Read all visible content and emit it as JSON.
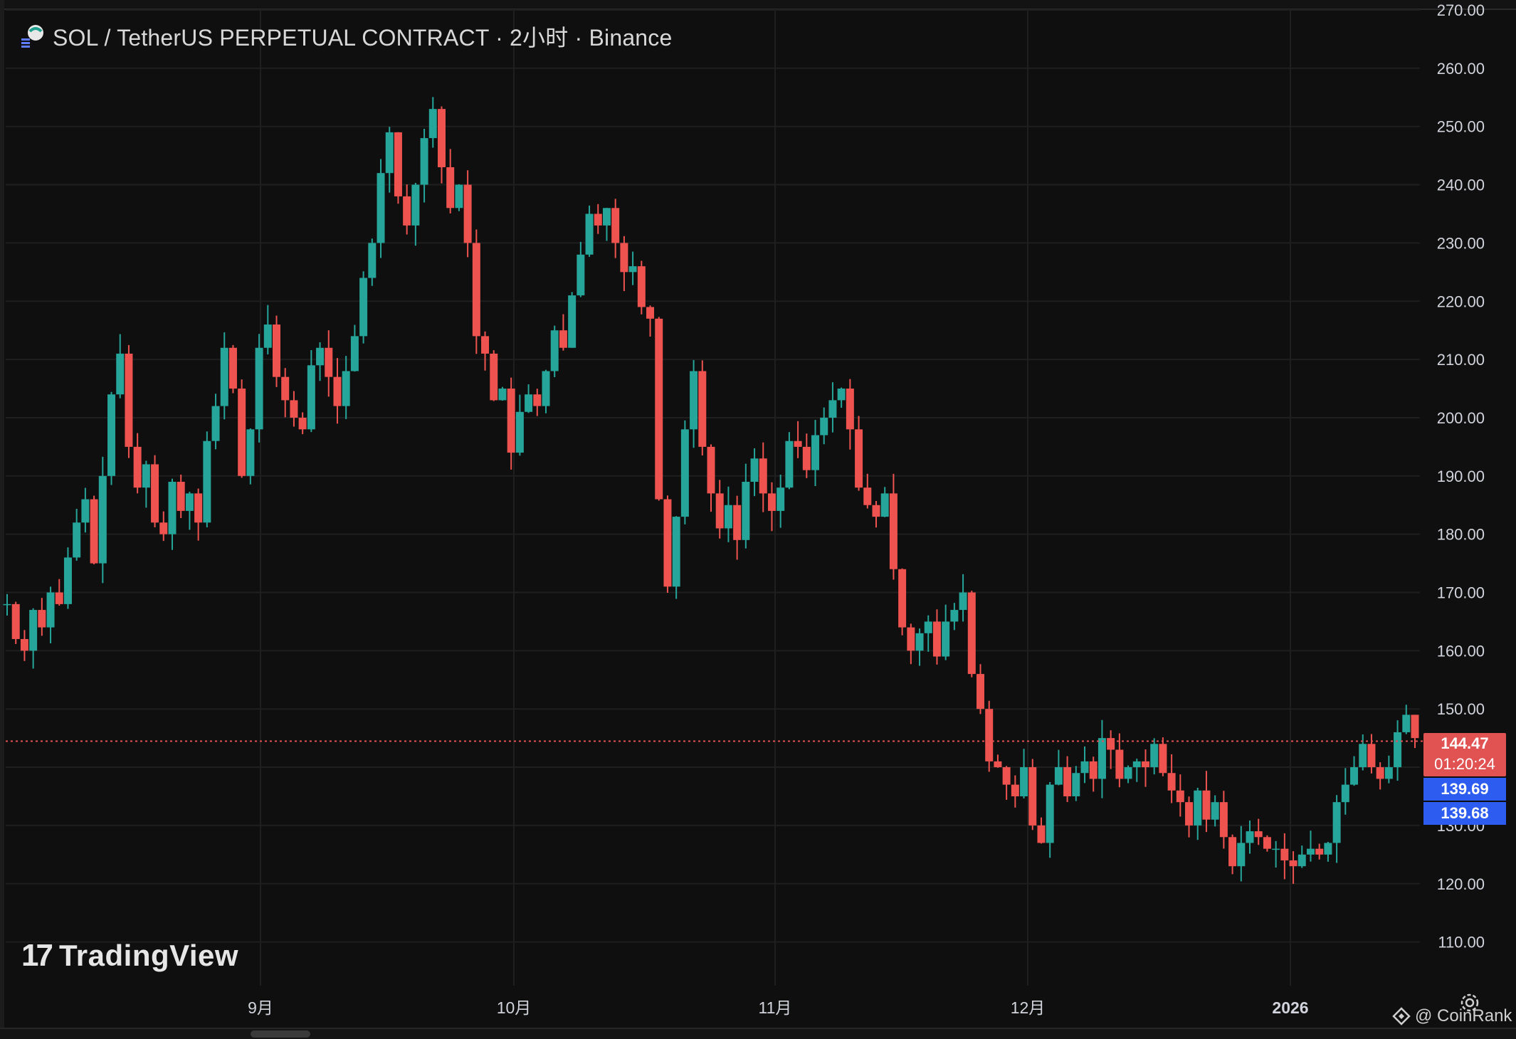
{
  "header": {
    "title": "SOL / TetherUS PERPETUAL CONTRACT · 2小时 · Binance"
  },
  "branding": {
    "logo_mark": "17",
    "logo_text": "TradingView",
    "watermark": "@ CoinRank"
  },
  "price_tags": {
    "last_price": "144.47",
    "countdown": "01:20:24",
    "tag_a": "139.69",
    "tag_b": "139.68"
  },
  "colors": {
    "background": "#0f0f0f",
    "grid": "#1f1f1f",
    "up": "#26a69a",
    "down": "#ef5350",
    "last_price": "#e15252",
    "marker": "#2d5df0"
  },
  "chart_data": {
    "type": "line",
    "style": "candlestick",
    "title": "SOL / TetherUS PERPETUAL CONTRACT · 2小时 · Binance",
    "xlabel": "",
    "ylabel": "",
    "x_ticks": [
      "9月",
      "10月",
      "11月",
      "12月",
      "2026"
    ],
    "y_ticks": [
      "110.00",
      "120.00",
      "130.00",
      "140.00",
      "150.00",
      "160.00",
      "170.00",
      "180.00",
      "190.00",
      "200.00",
      "210.00",
      "220.00",
      "230.00",
      "240.00",
      "250.00",
      "260.00",
      "270.00"
    ],
    "ylim": [
      102.5,
      270
    ],
    "last_price": 144.47,
    "grid": true,
    "series": [
      {
        "values": [
          168,
          162,
          160,
          167,
          164,
          170,
          168,
          176,
          182,
          186,
          175,
          190,
          204,
          211,
          195,
          188,
          192,
          182,
          180,
          189,
          184,
          187,
          182,
          196,
          202,
          212,
          205,
          190,
          198,
          212,
          216,
          207,
          203,
          200,
          198,
          209,
          212,
          207,
          202,
          208,
          214,
          224,
          230,
          242,
          249,
          238,
          233,
          240,
          248,
          253,
          243,
          236,
          240,
          230,
          214,
          211,
          203,
          205,
          194,
          201,
          204,
          202,
          208,
          215,
          212,
          221,
          228,
          235,
          233,
          236,
          230,
          225,
          226,
          219,
          217,
          186,
          171,
          183,
          198,
          208,
          195,
          187,
          181,
          185,
          179,
          189,
          193,
          187,
          184,
          188,
          196,
          195,
          191,
          197,
          200,
          203,
          205,
          198,
          188,
          185,
          183,
          187,
          174,
          164,
          160,
          163,
          165,
          159,
          165,
          167,
          170,
          156,
          150,
          141,
          140,
          137,
          135,
          140,
          130,
          127,
          137,
          140,
          135,
          139,
          141,
          138,
          145,
          143,
          138,
          140,
          141,
          140,
          144,
          139,
          136,
          134,
          130,
          136,
          131,
          134,
          128,
          123,
          127,
          129,
          128,
          126,
          126,
          124,
          123,
          125,
          126,
          125,
          127,
          134,
          137,
          140,
          144,
          140,
          138,
          140,
          146,
          149,
          145
        ]
      }
    ]
  }
}
